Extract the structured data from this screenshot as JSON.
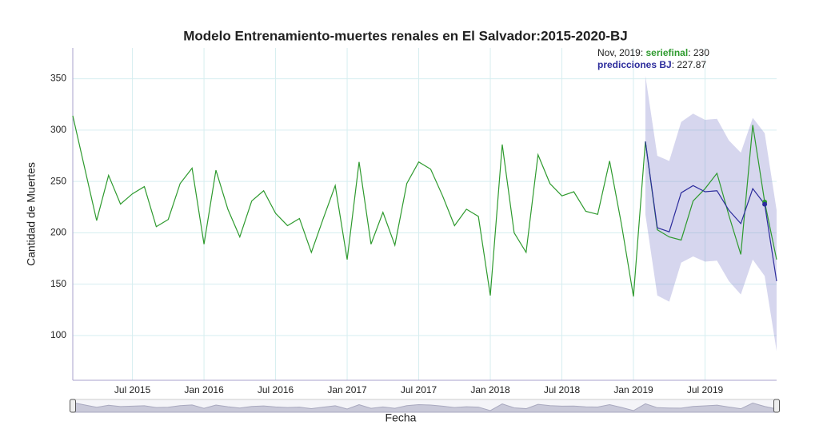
{
  "chart_data": {
    "type": "line",
    "title": "Modelo Entrenamiento-muertes renales en El Salvador:2015-2020-BJ",
    "x_label": "Fecha",
    "y_label": "Cantidad de Muertes",
    "x": [
      "2015-01",
      "2015-02",
      "2015-03",
      "2015-04",
      "2015-05",
      "2015-06",
      "2015-07",
      "2015-08",
      "2015-09",
      "2015-10",
      "2015-11",
      "2015-12",
      "2016-01",
      "2016-02",
      "2016-03",
      "2016-04",
      "2016-05",
      "2016-06",
      "2016-07",
      "2016-08",
      "2016-09",
      "2016-10",
      "2016-11",
      "2016-12",
      "2017-01",
      "2017-02",
      "2017-03",
      "2017-04",
      "2017-05",
      "2017-06",
      "2017-07",
      "2017-08",
      "2017-09",
      "2017-10",
      "2017-11",
      "2017-12",
      "2018-01",
      "2018-02",
      "2018-03",
      "2018-04",
      "2018-05",
      "2018-06",
      "2018-07",
      "2018-08",
      "2018-09",
      "2018-10",
      "2018-11",
      "2018-12",
      "2019-01",
      "2019-02",
      "2019-03",
      "2019-04",
      "2019-05",
      "2019-06",
      "2019-07",
      "2019-08",
      "2019-09",
      "2019-10",
      "2019-11",
      "2019-12"
    ],
    "series": [
      {
        "name": "seriefinal",
        "color": "#2e9a2e",
        "values": [
          314,
          263,
          212,
          256,
          228,
          238,
          245,
          206,
          213,
          248,
          263,
          189,
          261,
          223,
          196,
          231,
          241,
          219,
          207,
          214,
          181,
          214,
          246,
          174,
          269,
          189,
          220,
          188,
          248,
          269,
          262,
          236,
          207,
          223,
          216,
          139,
          286,
          200,
          181,
          276,
          248,
          236,
          240,
          221,
          218,
          270,
          208,
          138,
          289,
          203,
          196,
          193,
          231,
          243,
          258,
          217,
          179,
          305,
          230,
          174
        ]
      },
      {
        "name": "predicciones BJ",
        "color": "#2c2c9c",
        "band_color": "rgba(120,120,200,0.30)",
        "values": [
          null,
          null,
          null,
          null,
          null,
          null,
          null,
          null,
          null,
          null,
          null,
          null,
          null,
          null,
          null,
          null,
          null,
          null,
          null,
          null,
          null,
          null,
          null,
          null,
          null,
          null,
          null,
          null,
          null,
          null,
          null,
          null,
          null,
          null,
          null,
          null,
          null,
          null,
          null,
          null,
          null,
          null,
          null,
          null,
          null,
          null,
          null,
          null,
          289,
          205,
          201,
          239,
          246,
          240,
          241,
          222,
          209,
          243,
          227.87,
          153
        ],
        "lower": [
          null,
          null,
          null,
          null,
          null,
          null,
          null,
          null,
          null,
          null,
          null,
          null,
          null,
          null,
          null,
          null,
          null,
          null,
          null,
          null,
          null,
          null,
          null,
          null,
          null,
          null,
          null,
          null,
          null,
          null,
          null,
          null,
          null,
          null,
          null,
          null,
          null,
          null,
          null,
          null,
          null,
          null,
          null,
          null,
          null,
          null,
          null,
          null,
          218,
          139,
          133,
          171,
          177,
          172,
          173,
          153,
          140,
          174,
          158,
          85
        ],
        "upper": [
          null,
          null,
          null,
          null,
          null,
          null,
          null,
          null,
          null,
          null,
          null,
          null,
          null,
          null,
          null,
          null,
          null,
          null,
          null,
          null,
          null,
          null,
          null,
          null,
          null,
          null,
          null,
          null,
          null,
          null,
          null,
          null,
          null,
          null,
          null,
          null,
          null,
          null,
          null,
          null,
          null,
          null,
          null,
          null,
          null,
          null,
          null,
          null,
          353,
          275,
          270,
          308,
          316,
          310,
          311,
          290,
          278,
          312,
          297,
          222
        ]
      }
    ],
    "hover": {
      "index": 58,
      "x_label": "Nov, 2019",
      "separator": ": "
    },
    "ylim": [
      56.5,
      380
    ],
    "yticks": [
      100,
      150,
      200,
      250,
      300,
      350
    ],
    "xticks": [
      {
        "value": "2015-07",
        "label": "Jul 2015"
      },
      {
        "value": "2016-01",
        "label": "Jan 2016"
      },
      {
        "value": "2016-07",
        "label": "Jul 2016"
      },
      {
        "value": "2017-01",
        "label": "Jan 2017"
      },
      {
        "value": "2017-07",
        "label": "Jul 2017"
      },
      {
        "value": "2018-01",
        "label": "Jan 2018"
      },
      {
        "value": "2018-07",
        "label": "Jul 2018"
      },
      {
        "value": "2019-01",
        "label": "Jan 2019"
      },
      {
        "value": "2019-07",
        "label": "Jul 2019"
      }
    ],
    "grid": true
  }
}
